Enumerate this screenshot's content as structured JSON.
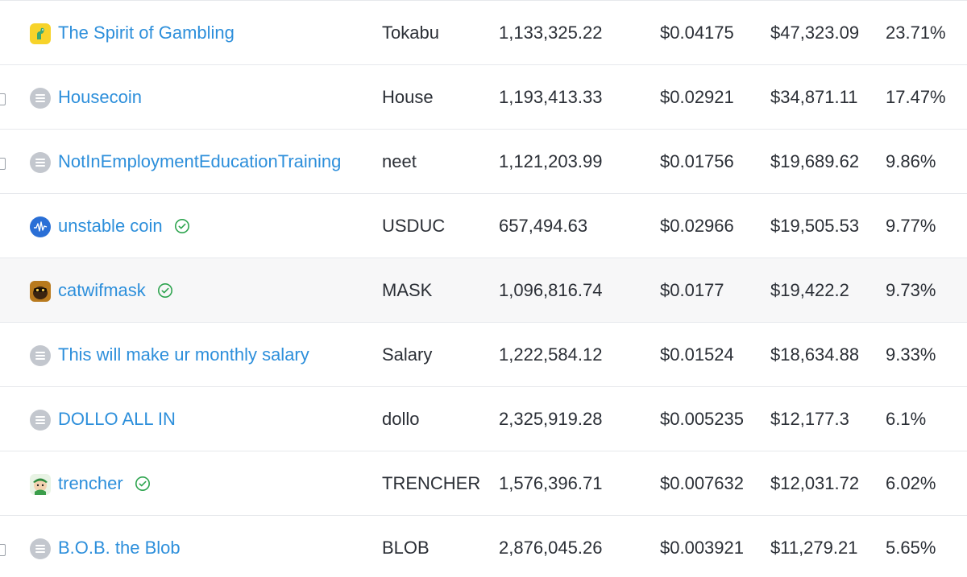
{
  "rows": [
    {
      "name": "The Spirit of Gambling",
      "symbol": "Tokabu",
      "quantity": "1,133,325.22",
      "price": "$0.04175",
      "value": "$47,323.09",
      "percent": "23.71%",
      "icon": "dino-icon",
      "verified": false
    },
    {
      "name": "Housecoin",
      "symbol": "House",
      "quantity": "1,193,413.33",
      "price": "$0.02921",
      "value": "$34,871.11",
      "percent": "17.47%",
      "icon": "solana-icon",
      "verified": false
    },
    {
      "name": "NotInEmploymentEducationTraining",
      "symbol": "neet",
      "quantity": "1,121,203.99",
      "price": "$0.01756",
      "value": "$19,689.62",
      "percent": "9.86%",
      "icon": "solana-icon",
      "verified": false
    },
    {
      "name": "unstable coin",
      "symbol": "USDUC",
      "quantity": "657,494.63",
      "price": "$0.02966",
      "value": "$19,505.53",
      "percent": "9.77%",
      "icon": "wave-icon",
      "verified": true
    },
    {
      "name": "catwifmask",
      "symbol": "MASK",
      "quantity": "1,096,816.74",
      "price": "$0.0177",
      "value": "$19,422.2",
      "percent": "9.73%",
      "icon": "cat-icon",
      "verified": true
    },
    {
      "name": "This will make ur monthly salary",
      "symbol": "Salary",
      "quantity": "1,222,584.12",
      "price": "$0.01524",
      "value": "$18,634.88",
      "percent": "9.33%",
      "icon": "solana-icon",
      "verified": false
    },
    {
      "name": "DOLLO ALL IN",
      "symbol": "dollo",
      "quantity": "2,325,919.28",
      "price": "$0.005235",
      "value": "$12,177.3",
      "percent": "6.1%",
      "icon": "solana-icon",
      "verified": false
    },
    {
      "name": "trencher",
      "symbol": "TRENCHER",
      "quantity": "1,576,396.71",
      "price": "$0.007632",
      "value": "$12,031.72",
      "percent": "6.02%",
      "icon": "trencher-icon",
      "verified": true
    },
    {
      "name": "B.O.B. the Blob",
      "symbol": "BLOB",
      "quantity": "2,876,045.26",
      "price": "$0.003921",
      "value": "$11,279.21",
      "percent": "5.65%",
      "icon": "solana-icon",
      "verified": false
    }
  ],
  "colors": {
    "link": "#2d8fdb",
    "text": "#2b2f36",
    "verified": "#2ea44f",
    "divider": "#e6e8ec",
    "highlight_row": "#f7f7f8"
  }
}
